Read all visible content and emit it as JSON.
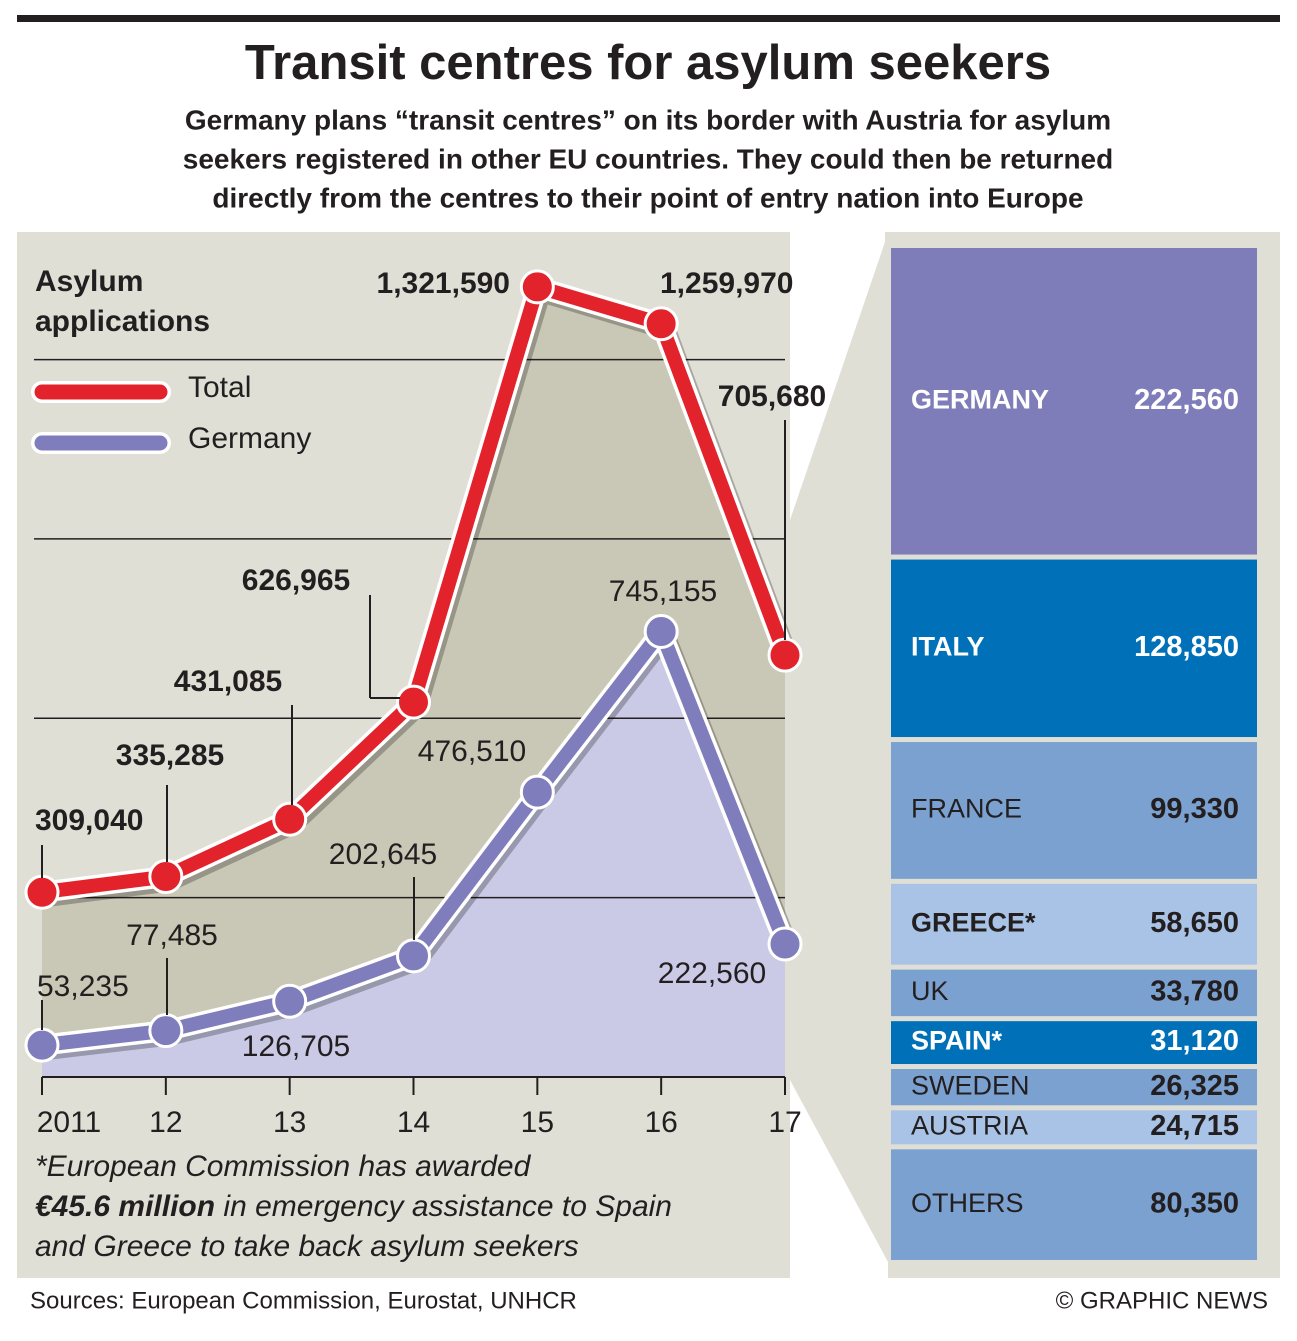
{
  "title": "Transit centres for asylum seekers",
  "subtitle": [
    "Germany plans “transit centres” on its border with Austria for asylum",
    "seekers registered in other EU countries. They could then be returned",
    "directly from the centres to their point of entry nation into Europe"
  ],
  "chart_data": [
    {
      "type": "line",
      "title": [
        "Asylum",
        "applications"
      ],
      "categories": [
        "2011",
        "12",
        "13",
        "14",
        "15",
        "16",
        "17"
      ],
      "series": [
        {
          "name": "Total",
          "color": "#e3232b",
          "values": [
            309040,
            335285,
            431085,
            626965,
            1321590,
            1259970,
            705680
          ],
          "value_labels": [
            "309,040",
            "335,285",
            "431,085",
            "626,965",
            "1,321,590",
            "1,259,970",
            "705,680"
          ]
        },
        {
          "name": "Germany",
          "color": "#7f7dbb",
          "values": [
            53235,
            77485,
            126705,
            202645,
            476510,
            745155,
            222560
          ],
          "value_labels": [
            "53,235",
            "77,485",
            "126,705",
            "202,645",
            "476,510",
            "745,155",
            "222,560"
          ]
        }
      ],
      "ylim": [
        0,
        1400000
      ],
      "yticks": [
        300000,
        600000,
        900000,
        1200000
      ],
      "grid": true,
      "legend": "top-left"
    },
    {
      "type": "stacked-bar",
      "series": [
        {
          "name": "GERMANY",
          "color": "#7f7db9",
          "values": [
            222560
          ],
          "value_labels": [
            "222,560"
          ]
        },
        {
          "name": "ITALY",
          "color": "#0071b9",
          "values": [
            128850
          ],
          "value_labels": [
            "128,850"
          ]
        },
        {
          "name": "FRANCE",
          "color": "#7ba1d1",
          "values": [
            99330
          ],
          "value_labels": [
            "99,330"
          ]
        },
        {
          "name": "GREECE*",
          "color": "#a8c3e5",
          "values": [
            58650
          ],
          "value_labels": [
            "58,650"
          ]
        },
        {
          "name": "UK",
          "color": "#7ba1d1",
          "values": [
            33780
          ],
          "value_labels": [
            "33,780"
          ]
        },
        {
          "name": "SPAIN*",
          "color": "#0071b9",
          "values": [
            31120
          ],
          "value_labels": [
            "31,120"
          ]
        },
        {
          "name": "SWEDEN",
          "color": "#7ba1d1",
          "values": [
            26325
          ],
          "value_labels": [
            "26,325"
          ]
        },
        {
          "name": "AUSTRIA",
          "color": "#a8c3e5",
          "values": [
            24715
          ],
          "value_labels": [
            "24,715"
          ]
        },
        {
          "name": "OTHERS",
          "color": "#7ba1d1",
          "values": [
            80350
          ],
          "value_labels": [
            "80,350"
          ]
        }
      ]
    }
  ],
  "footnote": [
    "*European Commission has awarded",
    "€45.6 million",
    " in emergency assistance to Spain",
    "and Greece to take back asylum seekers"
  ],
  "sources": "Sources: European Commission, Eurostat, UNHCR",
  "credit": "© GRAPHIC NEWS"
}
